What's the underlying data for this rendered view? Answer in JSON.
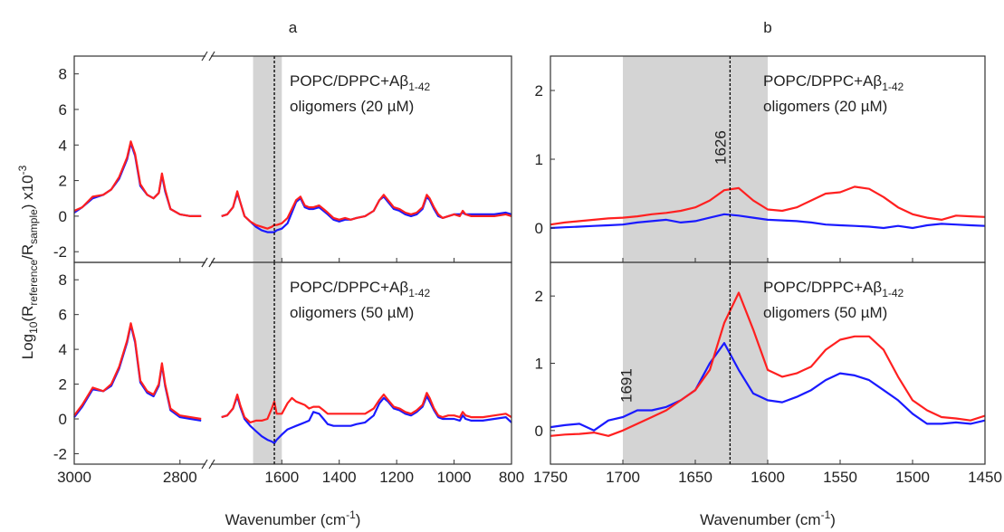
{
  "chart_data": [
    {
      "type": "line",
      "title": "a",
      "ylabel": [
        {
          "text": "Log"
        },
        {
          "text": "10",
          "shift": "sub"
        },
        {
          "text": "(R"
        },
        {
          "text": "reference",
          "shift": "sub"
        },
        {
          "text": "/R"
        },
        {
          "text": "sample",
          "shift": "sub"
        },
        {
          "text": ") x10"
        },
        {
          "text": "-3",
          "shift": "sup"
        }
      ],
      "x": [
        3000,
        2985,
        2965,
        2945,
        2930,
        2915,
        2900,
        2893,
        2885,
        2875,
        2862,
        2850,
        2840,
        2834,
        2828,
        2818,
        2800,
        2780,
        2760,
        1810,
        1790,
        1770,
        1755,
        1745,
        1730,
        1710,
        1690,
        1670,
        1650,
        1635,
        1626,
        1618,
        1600,
        1580,
        1565,
        1550,
        1535,
        1520,
        1505,
        1490,
        1470,
        1455,
        1440,
        1420,
        1400,
        1380,
        1360,
        1340,
        1310,
        1280,
        1260,
        1245,
        1230,
        1210,
        1190,
        1170,
        1150,
        1130,
        1110,
        1095,
        1085,
        1070,
        1055,
        1040,
        1020,
        1000,
        980,
        970,
        960,
        940,
        900,
        860,
        820,
        800
      ],
      "series": [
        {
          "color": "#1a1aff",
          "values": [
            0.2,
            0.5,
            1.0,
            1.2,
            1.5,
            2.1,
            3.2,
            4.1,
            3.4,
            1.7,
            1.2,
            1.0,
            1.3,
            2.3,
            1.4,
            0.4,
            0.1,
            0,
            0,
            0,
            0.1,
            0.5,
            1.3,
            0.8,
            0,
            -0.3,
            -0.6,
            -0.8,
            -0.9,
            -0.9,
            -0.9,
            -0.8,
            -0.7,
            -0.4,
            0.2,
            0.8,
            1.0,
            0.5,
            0.4,
            0.4,
            0.5,
            0.3,
            0.1,
            -0.2,
            -0.3,
            -0.2,
            -0.2,
            -0.1,
            0,
            0.3,
            0.9,
            1.1,
            0.8,
            0.4,
            0.3,
            0.1,
            0,
            0.1,
            0.4,
            1.1,
            0.9,
            0.4,
            0,
            -0.1,
            0,
            0.1,
            0.1,
            0.2,
            0.1,
            0.1,
            0.1,
            0.1,
            0.2,
            0.1
          ]
        },
        {
          "color": "#ff2020",
          "values": [
            0.3,
            0.5,
            1.1,
            1.2,
            1.5,
            2.2,
            3.3,
            4.2,
            3.5,
            1.8,
            1.2,
            1.0,
            1.3,
            2.4,
            1.5,
            0.4,
            0.1,
            0,
            0,
            0,
            0.1,
            0.5,
            1.4,
            0.8,
            0,
            -0.3,
            -0.5,
            -0.6,
            -0.7,
            -0.6,
            -0.5,
            -0.5,
            -0.4,
            -0.1,
            0.4,
            0.9,
            1.1,
            0.6,
            0.5,
            0.5,
            0.6,
            0.4,
            0.2,
            -0.1,
            -0.2,
            -0.1,
            -0.2,
            -0.1,
            0,
            0.3,
            0.9,
            1.2,
            0.9,
            0.5,
            0.4,
            0.2,
            0.1,
            0.2,
            0.5,
            1.2,
            1.0,
            0.5,
            0.1,
            -0.1,
            0,
            0.1,
            0,
            0.3,
            0.1,
            0,
            0,
            0,
            0.1,
            0
          ]
        }
      ],
      "xlim": [
        3000,
        800
      ],
      "xbreak": [
        2750,
        1850
      ],
      "xticks": [
        3000,
        2800,
        1600,
        1400,
        1200,
        1000,
        800
      ],
      "show_xticklabels": false,
      "ylim": [
        -2.6,
        9
      ],
      "yticks": [
        -2,
        0,
        2,
        4,
        6,
        8
      ],
      "shaded": [
        1700,
        1600
      ],
      "vline": 1626,
      "annotation": [
        [
          {
            "text": "POPC/DPPC+Aβ"
          },
          {
            "text": "1-42",
            "shift": "sub"
          }
        ],
        [
          {
            "text": "oligomers (20 µM)"
          }
        ]
      ]
    },
    {
      "type": "line",
      "xlabel": [
        {
          "text": "Wavenumber (cm"
        },
        {
          "text": "-1",
          "shift": "sup"
        },
        {
          "text": ")"
        }
      ],
      "x": [
        3000,
        2985,
        2965,
        2945,
        2930,
        2915,
        2900,
        2893,
        2885,
        2875,
        2862,
        2850,
        2840,
        2834,
        2828,
        2818,
        2800,
        2780,
        2760,
        1810,
        1790,
        1770,
        1755,
        1745,
        1730,
        1710,
        1690,
        1670,
        1650,
        1635,
        1626,
        1618,
        1600,
        1580,
        1565,
        1550,
        1535,
        1520,
        1505,
        1490,
        1470,
        1455,
        1440,
        1420,
        1400,
        1380,
        1360,
        1340,
        1310,
        1280,
        1260,
        1245,
        1230,
        1210,
        1190,
        1170,
        1150,
        1130,
        1110,
        1095,
        1085,
        1070,
        1055,
        1040,
        1020,
        1000,
        980,
        970,
        960,
        940,
        900,
        860,
        820,
        800
      ],
      "series": [
        {
          "color": "#1a1aff",
          "values": [
            0.1,
            0.7,
            1.7,
            1.6,
            1.9,
            2.9,
            4.4,
            5.4,
            4.4,
            2.1,
            1.5,
            1.3,
            1.9,
            3.1,
            1.9,
            0.5,
            0.1,
            0,
            -0.1,
            0.1,
            0.2,
            0.6,
            1.3,
            0.7,
            0,
            -0.4,
            -0.7,
            -1.0,
            -1.2,
            -1.3,
            -1.4,
            -1.2,
            -0.9,
            -0.6,
            -0.5,
            -0.4,
            -0.3,
            -0.2,
            -0.1,
            0.4,
            0.3,
            0,
            -0.3,
            -0.4,
            -0.4,
            -0.4,
            -0.4,
            -0.3,
            -0.2,
            0.2,
            0.9,
            1.2,
            1.0,
            0.6,
            0.5,
            0.3,
            0.2,
            0.4,
            0.7,
            1.3,
            1.0,
            0.5,
            0.1,
            0,
            0,
            0,
            -0.1,
            0.2,
            0,
            -0.1,
            -0.1,
            0,
            0.1,
            -0.2
          ]
        },
        {
          "color": "#ff2020",
          "values": [
            0.2,
            0.8,
            1.8,
            1.6,
            2.0,
            3.0,
            4.5,
            5.5,
            4.5,
            2.2,
            1.6,
            1.4,
            2.0,
            3.2,
            2.0,
            0.6,
            0.2,
            0.1,
            0,
            0.1,
            0.2,
            0.6,
            1.4,
            0.8,
            0.1,
            -0.2,
            -0.1,
            -0.1,
            0,
            0.6,
            1.0,
            0.3,
            0.3,
            0.9,
            1.2,
            1.0,
            0.9,
            0.8,
            0.6,
            0.7,
            0.7,
            0.5,
            0.3,
            0.3,
            0.3,
            0.3,
            0.3,
            0.3,
            0.3,
            0.6,
            1.1,
            1.4,
            1.1,
            0.7,
            0.6,
            0.4,
            0.3,
            0.5,
            0.8,
            1.5,
            1.2,
            0.6,
            0.2,
            0.1,
            0.2,
            0.2,
            0.1,
            0.4,
            0.2,
            0.1,
            0.1,
            0.2,
            0.3,
            0.1
          ]
        }
      ],
      "xlim": [
        3000,
        800
      ],
      "xbreak": [
        2750,
        1850
      ],
      "xticks": [
        3000,
        2800,
        1600,
        1400,
        1200,
        1000,
        800
      ],
      "show_xticklabels": true,
      "ylim": [
        -2.6,
        9
      ],
      "yticks": [
        -2,
        0,
        2,
        4,
        6,
        8
      ],
      "shaded": [
        1700,
        1600
      ],
      "vline": 1626,
      "annotation": [
        [
          {
            "text": "POPC/DPPC+Aβ"
          },
          {
            "text": "1-42",
            "shift": "sub"
          }
        ],
        [
          {
            "text": "oligomers (50 µM)"
          }
        ]
      ]
    },
    {
      "type": "line",
      "title": "b",
      "x": [
        1750,
        1740,
        1730,
        1720,
        1710,
        1700,
        1690,
        1680,
        1670,
        1660,
        1650,
        1640,
        1630,
        1620,
        1610,
        1600,
        1590,
        1580,
        1570,
        1560,
        1550,
        1540,
        1530,
        1520,
        1510,
        1500,
        1490,
        1480,
        1470,
        1460,
        1450
      ],
      "series": [
        {
          "color": "#1a1aff",
          "values": [
            0,
            0.01,
            0.02,
            0.03,
            0.04,
            0.05,
            0.08,
            0.1,
            0.12,
            0.08,
            0.1,
            0.15,
            0.2,
            0.18,
            0.15,
            0.12,
            0.11,
            0.1,
            0.08,
            0.05,
            0.04,
            0.03,
            0.02,
            0,
            0.03,
            0,
            0.04,
            0.06,
            0.05,
            0.04,
            0.03
          ]
        },
        {
          "color": "#ff2020",
          "values": [
            0.05,
            0.08,
            0.1,
            0.12,
            0.14,
            0.15,
            0.17,
            0.2,
            0.22,
            0.25,
            0.3,
            0.4,
            0.55,
            0.58,
            0.4,
            0.27,
            0.25,
            0.3,
            0.4,
            0.5,
            0.52,
            0.6,
            0.57,
            0.45,
            0.3,
            0.2,
            0.15,
            0.12,
            0.18,
            0.17,
            0.16
          ]
        }
      ],
      "xlim": [
        1750,
        1450
      ],
      "xticks": [
        1750,
        1700,
        1650,
        1600,
        1550,
        1500,
        1450
      ],
      "show_xticklabels": false,
      "ylim": [
        -0.5,
        2.5
      ],
      "yticks": [
        0,
        1,
        2
      ],
      "shaded": [
        1700,
        1600
      ],
      "vline": 1626,
      "peak_label": {
        "label": "1626",
        "x": 1626
      },
      "annotation": [
        [
          {
            "text": "POPC/DPPC+Aβ"
          },
          {
            "text": "1-42",
            "shift": "sub"
          }
        ],
        [
          {
            "text": "oligomers (20 µM)"
          }
        ]
      ]
    },
    {
      "type": "line",
      "xlabel": [
        {
          "text": "Wavenumber (cm"
        },
        {
          "text": "-1",
          "shift": "sup"
        },
        {
          "text": ")"
        }
      ],
      "x": [
        1750,
        1740,
        1730,
        1720,
        1710,
        1700,
        1690,
        1680,
        1670,
        1660,
        1650,
        1640,
        1630,
        1620,
        1610,
        1600,
        1590,
        1580,
        1570,
        1560,
        1550,
        1540,
        1530,
        1520,
        1510,
        1500,
        1490,
        1480,
        1470,
        1460,
        1450
      ],
      "series": [
        {
          "color": "#1a1aff",
          "values": [
            0.05,
            0.08,
            0.1,
            0,
            0.15,
            0.2,
            0.3,
            0.3,
            0.35,
            0.45,
            0.6,
            1.0,
            1.3,
            0.9,
            0.55,
            0.45,
            0.42,
            0.5,
            0.6,
            0.75,
            0.85,
            0.82,
            0.75,
            0.6,
            0.45,
            0.25,
            0.1,
            0.1,
            0.12,
            0.1,
            0.15
          ]
        },
        {
          "color": "#ff2020",
          "values": [
            -0.08,
            -0.06,
            -0.05,
            -0.03,
            -0.08,
            0,
            0.1,
            0.2,
            0.3,
            0.45,
            0.6,
            0.9,
            1.6,
            2.05,
            1.5,
            0.9,
            0.8,
            0.85,
            0.95,
            1.2,
            1.35,
            1.4,
            1.4,
            1.2,
            0.8,
            0.45,
            0.3,
            0.2,
            0.18,
            0.15,
            0.22
          ]
        }
      ],
      "xlim": [
        1750,
        1450
      ],
      "xticks": [
        1750,
        1700,
        1650,
        1600,
        1550,
        1500,
        1450
      ],
      "show_xticklabels": true,
      "ylim": [
        -0.5,
        2.5
      ],
      "yticks": [
        0,
        1,
        2
      ],
      "shaded": [
        1700,
        1600
      ],
      "vline": 1626,
      "peak_label": {
        "label": "1691",
        "x": 1691
      },
      "annotation": [
        [
          {
            "text": "POPC/DPPC+Aβ"
          },
          {
            "text": "1-42",
            "shift": "sub"
          }
        ],
        [
          {
            "text": "oligomers (50 µM)"
          }
        ]
      ]
    }
  ]
}
